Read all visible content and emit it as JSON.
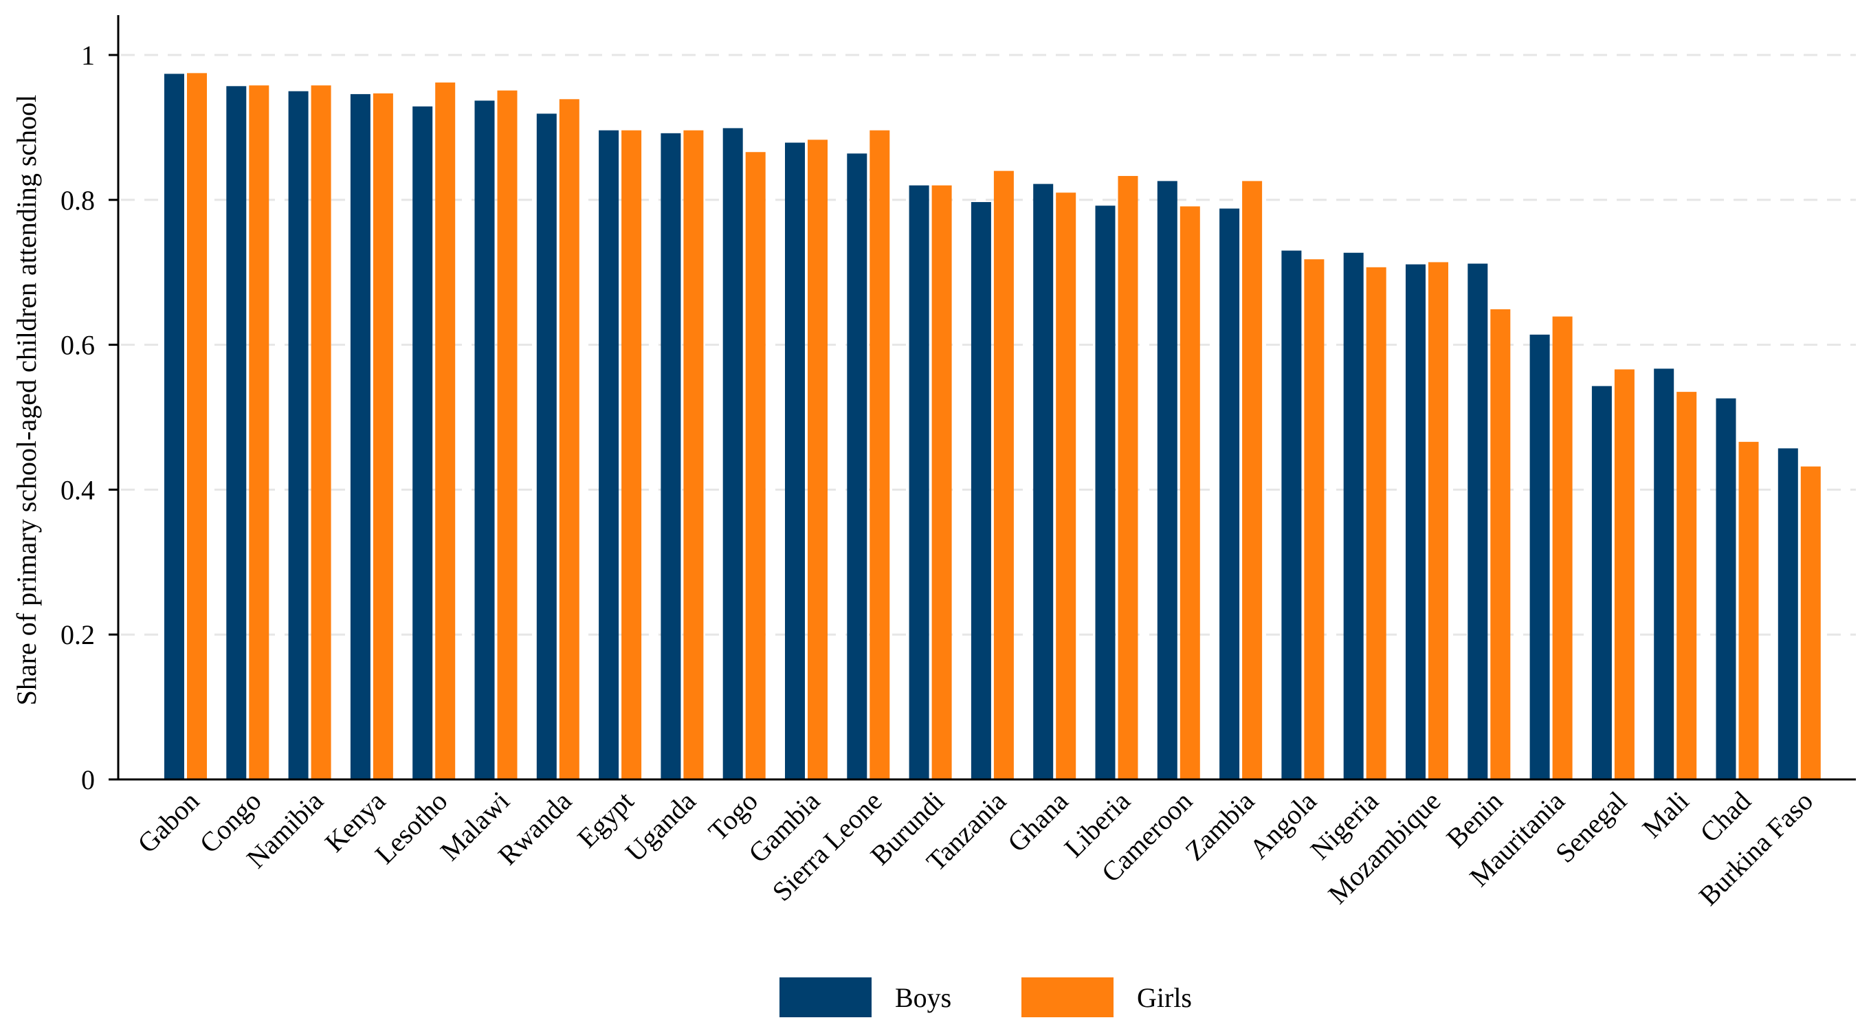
{
  "chart_data": {
    "type": "bar",
    "title": "",
    "xlabel": "",
    "ylabel": "Share of primary school-aged children attending school",
    "ylim": [
      0,
      1.05
    ],
    "yticks": [
      0,
      0.2,
      0.4,
      0.6,
      0.8,
      1
    ],
    "ytick_labels": [
      "0",
      "0.2",
      "0.4",
      "0.6",
      "0.8",
      "1"
    ],
    "grid": true,
    "legend_position": "bottom",
    "categories": [
      "Gabon",
      "Congo",
      "Namibia",
      "Kenya",
      "Lesotho",
      "Malawi",
      "Rwanda",
      "Egypt",
      "Uganda",
      "Togo",
      "Gambia",
      "Sierra Leone",
      "Burundi",
      "Tanzania",
      "Ghana",
      "Liberia",
      "Cameroon",
      "Zambia",
      "Angola",
      "Nigeria",
      "Mozambique",
      "Benin",
      "Mauritania",
      "Senegal",
      "Mali",
      "Chad",
      "Burkina Faso"
    ],
    "series": [
      {
        "name": "Boys",
        "color": "#003f6e",
        "values": [
          0.974,
          0.957,
          0.95,
          0.946,
          0.929,
          0.937,
          0.919,
          0.896,
          0.892,
          0.899,
          0.879,
          0.864,
          0.82,
          0.797,
          0.822,
          0.792,
          0.826,
          0.788,
          0.73,
          0.727,
          0.711,
          0.712,
          0.614,
          0.543,
          0.567,
          0.526,
          0.457
        ]
      },
      {
        "name": "Girls",
        "color": "#ff7f0e",
        "values": [
          0.975,
          0.958,
          0.958,
          0.947,
          0.962,
          0.951,
          0.939,
          0.896,
          0.896,
          0.866,
          0.883,
          0.896,
          0.82,
          0.84,
          0.81,
          0.833,
          0.791,
          0.826,
          0.718,
          0.707,
          0.714,
          0.649,
          0.639,
          0.566,
          0.535,
          0.466,
          0.432
        ]
      }
    ]
  }
}
